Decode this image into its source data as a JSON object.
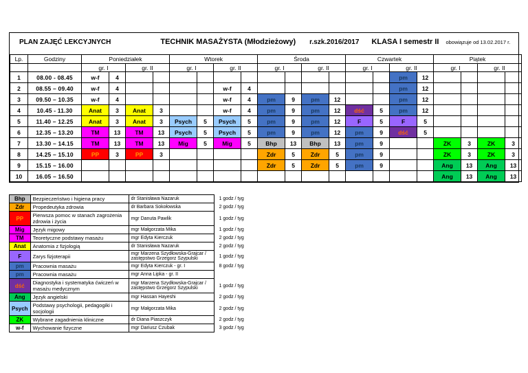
{
  "header": {
    "plan_title": "PLAN ZAJĘĆ LEKCYJNYCH",
    "school_name": "TECHNIK MASAŻYSTA (Młodzieżowy)",
    "school_year": "r.szk.2016/2017",
    "class_semester": "KLASA I semestr II",
    "valid_from": "obowiązuje od 13.02.2017 r."
  },
  "timetable": {
    "lp_header": "Lp.",
    "hours_header": "Godziny",
    "days": [
      "Poniedziałek",
      "Wtorek",
      "Środa",
      "Czwartek",
      "Piątek"
    ],
    "group_labels": [
      "gr. I",
      "gr. II"
    ],
    "rows": [
      {
        "lp": "1",
        "time": "08.00 - 08.45",
        "cells": [
          {
            "s": "w-f",
            "r": "4"
          },
          null,
          null,
          null,
          null,
          null,
          null,
          {
            "s": "pm",
            "r": "12"
          },
          null,
          null
        ]
      },
      {
        "lp": "2",
        "time": "08.55 – 09.40",
        "cells": [
          {
            "s": "w-f",
            "r": "4"
          },
          null,
          null,
          {
            "s": "w-f",
            "r": "4"
          },
          null,
          null,
          null,
          {
            "s": "pm",
            "r": "12"
          },
          null,
          null
        ]
      },
      {
        "lp": "3",
        "time": "09.50 – 10.35",
        "cells": [
          {
            "s": "w-f",
            "r": "4"
          },
          null,
          null,
          {
            "s": "w-f",
            "r": "4"
          },
          {
            "s": "pm",
            "r": "9"
          },
          {
            "s": "pm",
            "r": "12"
          },
          null,
          {
            "s": "pm",
            "r": "12"
          },
          null,
          null
        ]
      },
      {
        "lp": "4",
        "time": "10.45 - 11.30",
        "cells": [
          {
            "s": "Anat",
            "r": "3"
          },
          {
            "s": "Anat",
            "r": "3"
          },
          null,
          {
            "s": "w-f",
            "r": "4"
          },
          {
            "s": "pm",
            "r": "9"
          },
          {
            "s": "pm",
            "r": "12"
          },
          {
            "s": "dść",
            "r": "5"
          },
          {
            "s": "pm",
            "r": "12"
          },
          null,
          null
        ]
      },
      {
        "lp": "5",
        "time": "11.40 – 12.25",
        "cells": [
          {
            "s": "Anat",
            "r": "3"
          },
          {
            "s": "Anat",
            "r": "3"
          },
          {
            "s": "Psych",
            "r": "5"
          },
          {
            "s": "Psych",
            "r": "5"
          },
          {
            "s": "pm",
            "r": "9"
          },
          {
            "s": "pm",
            "r": "12"
          },
          {
            "s": "F",
            "r": "5"
          },
          {
            "s": "F",
            "r": "5"
          },
          null,
          null
        ]
      },
      {
        "lp": "6",
        "time": "12.35 – 13.20",
        "cells": [
          {
            "s": "TM",
            "r": "13"
          },
          {
            "s": "TM",
            "r": "13"
          },
          {
            "s": "Psych",
            "r": "5"
          },
          {
            "s": "Psych",
            "r": "5"
          },
          {
            "s": "pm",
            "r": "9"
          },
          {
            "s": "pm",
            "r": "12"
          },
          {
            "s": "pm",
            "r": "9"
          },
          {
            "s": "dść",
            "r": "5"
          },
          null,
          null
        ]
      },
      {
        "lp": "7",
        "time": "13.30 – 14.15",
        "cells": [
          {
            "s": "TM",
            "r": "13"
          },
          {
            "s": "TM",
            "r": "13"
          },
          {
            "s": "Mig",
            "r": "5"
          },
          {
            "s": "Mig",
            "r": "5"
          },
          {
            "s": "Bhp",
            "r": "13"
          },
          {
            "s": "Bhp",
            "r": "13"
          },
          {
            "s": "pm",
            "r": "9"
          },
          null,
          {
            "s": "ZK",
            "r": "3"
          },
          {
            "s": "ZK",
            "r": "3"
          }
        ]
      },
      {
        "lp": "8",
        "time": "14.25 – 15.10",
        "cells": [
          {
            "s": "PP",
            "r": "3"
          },
          {
            "s": "PP",
            "r": "3"
          },
          null,
          null,
          {
            "s": "Zdr",
            "r": "5"
          },
          {
            "s": "Zdr",
            "r": "5"
          },
          {
            "s": "pm",
            "r": "9"
          },
          null,
          {
            "s": "ZK",
            "r": "3"
          },
          {
            "s": "ZK",
            "r": "3"
          }
        ]
      },
      {
        "lp": "9",
        "time": "15.15 – 16.00",
        "cells": [
          null,
          null,
          null,
          null,
          {
            "s": "Zdr",
            "r": "5"
          },
          {
            "s": "Zdr",
            "r": "5"
          },
          {
            "s": "pm",
            "r": "9"
          },
          null,
          {
            "s": "Ang",
            "r": "13"
          },
          {
            "s": "Ang",
            "r": "13"
          }
        ]
      },
      {
        "lp": "10",
        "time": "16.05 – 16.50",
        "cells": [
          null,
          null,
          null,
          null,
          null,
          null,
          null,
          null,
          {
            "s": "Ang",
            "r": "13"
          },
          {
            "s": "Ang",
            "r": "13"
          }
        ]
      }
    ]
  },
  "subject_styles": {
    "w-f": {
      "bg": "#FFFFFF",
      "fg": "#000000"
    },
    "pm": {
      "bg": "#4472C4",
      "fg": "#17375E"
    },
    "Anat": {
      "bg": "#FFFF00",
      "fg": "#000000"
    },
    "Psych": {
      "bg": "#99CCFF",
      "fg": "#000000"
    },
    "TM": {
      "bg": "#FF00FF",
      "fg": "#000000"
    },
    "Mig": {
      "bg": "#FF00FF",
      "fg": "#000000"
    },
    "dść": {
      "bg": "#7030A0",
      "fg": "#FF6600"
    },
    "F": {
      "bg": "#9966FF",
      "fg": "#000000"
    },
    "Bhp": {
      "bg": "#C0C0C0",
      "fg": "#000000"
    },
    "PP": {
      "bg": "#FF0000",
      "fg": "#FF9900"
    },
    "Zdr": {
      "bg": "#FFA500",
      "fg": "#000000"
    },
    "ZK": {
      "bg": "#00FF00",
      "fg": "#000000"
    },
    "Ang": {
      "bg": "#00CC55",
      "fg": "#000000"
    }
  },
  "legend": {
    "rows": [
      {
        "abbr": "Bhp",
        "subject": "Bezpieczeństwo i higiena pracy",
        "teacher": "dr Stanisława Nazaruk",
        "hours": "1 godz / tyg"
      },
      {
        "abbr": "Zdr",
        "subject": "Propedeutyka zdrowia",
        "teacher": "dr Barbara Sokołowska",
        "hours": "2 godz / tyg"
      },
      {
        "abbr": "PP",
        "subject": "Pierwsza pomoc w stanach zagrożenia zdrowia i życia",
        "teacher": "mgr Danuta Pawlik",
        "hours": "1 godz / tyg"
      },
      {
        "abbr": "Mig",
        "subject": "Język migowy",
        "teacher": "mgr Małgorzata Mika",
        "hours": "1 godz / tyg"
      },
      {
        "abbr": "TM",
        "subject": "Teoretyczne podstawy masażu",
        "teacher": "mgr Edyta Kierczuk",
        "hours": "2 godz / tyg"
      },
      {
        "abbr": "Anat",
        "subject": "Anatomia z fizjologią",
        "teacher": "dr Stanisława Nazaruk",
        "hours": "2 godz / tyg"
      },
      {
        "abbr": "F",
        "subject": "Zarys fizjoterapii",
        "teacher": "mgr Marzena Szydłowska-Grajcar / zastępstwo Grzegorz Szypulski",
        "hours": "1 godz / tyg"
      },
      {
        "abbr": "pm",
        "subject": "Pracownia masażu",
        "teacher": "mgr Edyta Kierczuk - gr. I",
        "hours": "8 godz / tyg"
      },
      {
        "abbr": "pm",
        "subject": "Pracownia masażu",
        "teacher": "mgr Anna Lipka - gr. II",
        "hours": ""
      },
      {
        "abbr": "dść",
        "subject": "Diagnostyka i systematyka ćwiczeń w masażu medycznym",
        "teacher": "mgr Marzena Szydłowska-Grajcar / zastępstwo Grzegorz Szypulski",
        "hours": "1 godz / tyg"
      },
      {
        "abbr": "Ang",
        "subject": "Język angielski",
        "teacher": "mgr Hassan Hayeshi",
        "hours": "2 godz / tyg"
      },
      {
        "abbr": "Psych",
        "subject": "Podstawy psychologii, pedagogiki i socjologii",
        "teacher": "mgr Małgorzata Mika",
        "hours": "2 godz / tyg"
      },
      {
        "abbr": "ZK",
        "subject": "Wybrane zagadnienia kliniczne",
        "teacher": "dr Diana Piaszczyk",
        "hours": "2 godz / tyg"
      },
      {
        "abbr": "w-f",
        "subject": "Wychowanie fizyczne",
        "teacher": "mgr Dariusz Czubak",
        "hours": "3 godz / tyg"
      }
    ]
  }
}
